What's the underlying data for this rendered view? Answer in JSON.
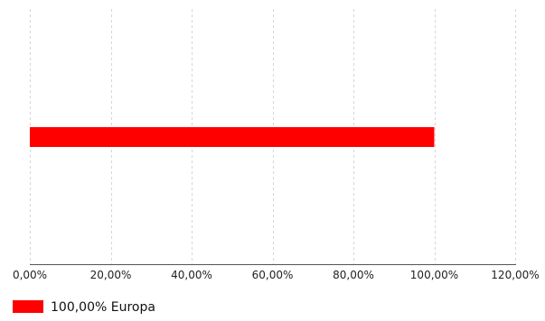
{
  "chart_data": {
    "type": "bar",
    "orientation": "horizontal",
    "categories": [
      "Europa"
    ],
    "values": [
      100
    ],
    "xlim": [
      0,
      120
    ],
    "x_ticks": [
      0,
      20,
      40,
      60,
      80,
      100,
      120
    ],
    "x_tick_labels": [
      "0,00%",
      "20,00%",
      "40,00%",
      "60,00%",
      "80,00%",
      "100,00%",
      "120,00%"
    ],
    "grid": true,
    "legend_position": "bottom-left",
    "legend": [
      {
        "label": "100,00% Europa",
        "color": "#ff0000"
      }
    ],
    "colors": {
      "bar": "#ff0000"
    },
    "title": "",
    "xlabel": "",
    "ylabel": ""
  }
}
